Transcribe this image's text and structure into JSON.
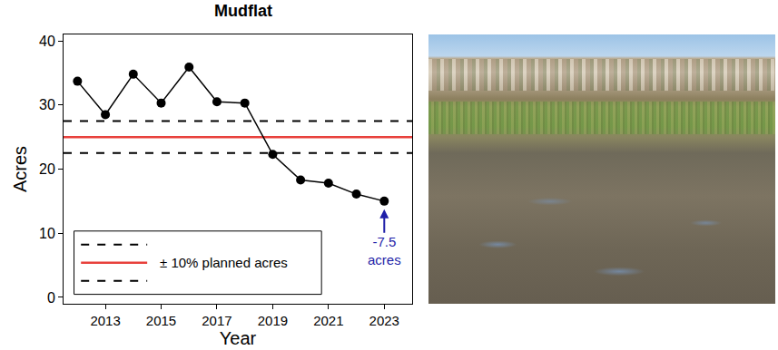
{
  "chart_data": {
    "type": "line",
    "title": "Mudflat",
    "x_label": "Year",
    "y_label": "Acres",
    "x": [
      2012,
      2013,
      2014,
      2015,
      2016,
      2017,
      2018,
      2019,
      2020,
      2021,
      2022,
      2023
    ],
    "values": [
      33.7,
      28.5,
      34.8,
      30.3,
      35.9,
      30.5,
      30.3,
      22.3,
      18.3,
      17.8,
      16.1,
      15.0
    ],
    "color": "#000000",
    "marker": "circle",
    "line_style": "solid",
    "xlim": [
      2011.5,
      2024
    ],
    "xticks": [
      2013,
      2015,
      2017,
      2019,
      2021,
      2023
    ],
    "ylim": [
      -1,
      41
    ],
    "yticks": [
      0,
      10,
      20,
      30,
      40
    ],
    "grid": false,
    "legend": "lower left",
    "reference": {
      "label": "± 10% planned acres",
      "value": 25,
      "lower": 22.5,
      "upper": 27.5,
      "color": "#e8413c"
    },
    "annotation": {
      "text": "-7.5 acres",
      "x": 2023,
      "color": "#1f1fa8"
    }
  }
}
